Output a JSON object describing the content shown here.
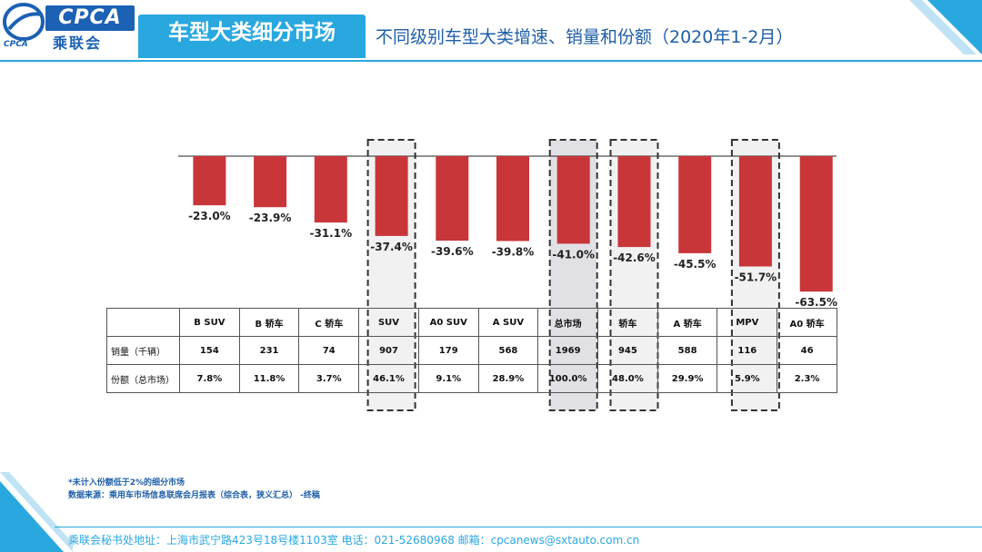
{
  "header": {
    "logo_text": "CPCA",
    "logo_cn": "乘联会",
    "logo_small": "CPCA",
    "title": "车型大类细分市场",
    "subtitle": "不同级别车型大类增速、销量和份额（2020年1-2月）"
  },
  "colors": {
    "accent": "#29a8e0",
    "bar": "#c8363a",
    "highlight": "#ececec",
    "highlight_dark": "#d6d6dc"
  },
  "chart_data": {
    "type": "bar",
    "categories": [
      "B SUV",
      "B 轿车",
      "C 轿车",
      "SUV",
      "A0 SUV",
      "A SUV",
      "总市场",
      "轿车",
      "A 轿车",
      "MPV",
      "A0 轿车"
    ],
    "series": [
      {
        "values": [
          -23.0,
          -23.9,
          -31.1,
          -37.4,
          -39.6,
          -39.8,
          -41.0,
          -42.6,
          -45.5,
          -51.7,
          -63.5
        ]
      }
    ],
    "data_labels": [
      "-23.0%",
      "-23.9%",
      "-31.1%",
      "-37.4%",
      "-39.6%",
      "-39.8%",
      "-41.0%",
      "-42.6%",
      "-45.5%",
      "-51.7%",
      "-63.5%"
    ],
    "highlighted_categories": [
      "SUV",
      "总市场",
      "轿车",
      "MPV"
    ],
    "grid": false,
    "legend": "none"
  },
  "table": {
    "header_blank": "",
    "rows": [
      {
        "label": "销量（千辆）",
        "values": [
          "154",
          "231",
          "74",
          "907",
          "179",
          "568",
          "1969",
          "945",
          "588",
          "116",
          "46"
        ]
      },
      {
        "label": "份额（总市场）",
        "values": [
          "7.8%",
          "11.8%",
          "3.7%",
          "46.1%",
          "9.1%",
          "28.9%",
          "100.0%",
          "48.0%",
          "29.9%",
          "5.9%",
          "2.3%"
        ]
      }
    ]
  },
  "notes": {
    "line1": "*未计入份额低于2%的细分市场",
    "line2": "数据来源：乘用车市场信息联席会月报表（综合表，狭义汇总）   -终稿"
  },
  "footer": {
    "text": "乘联会秘书处地址：上海市武宁路423号18号楼1103室  电话：021-52680968   邮箱：cpcanews@sxtauto.com.cn"
  }
}
